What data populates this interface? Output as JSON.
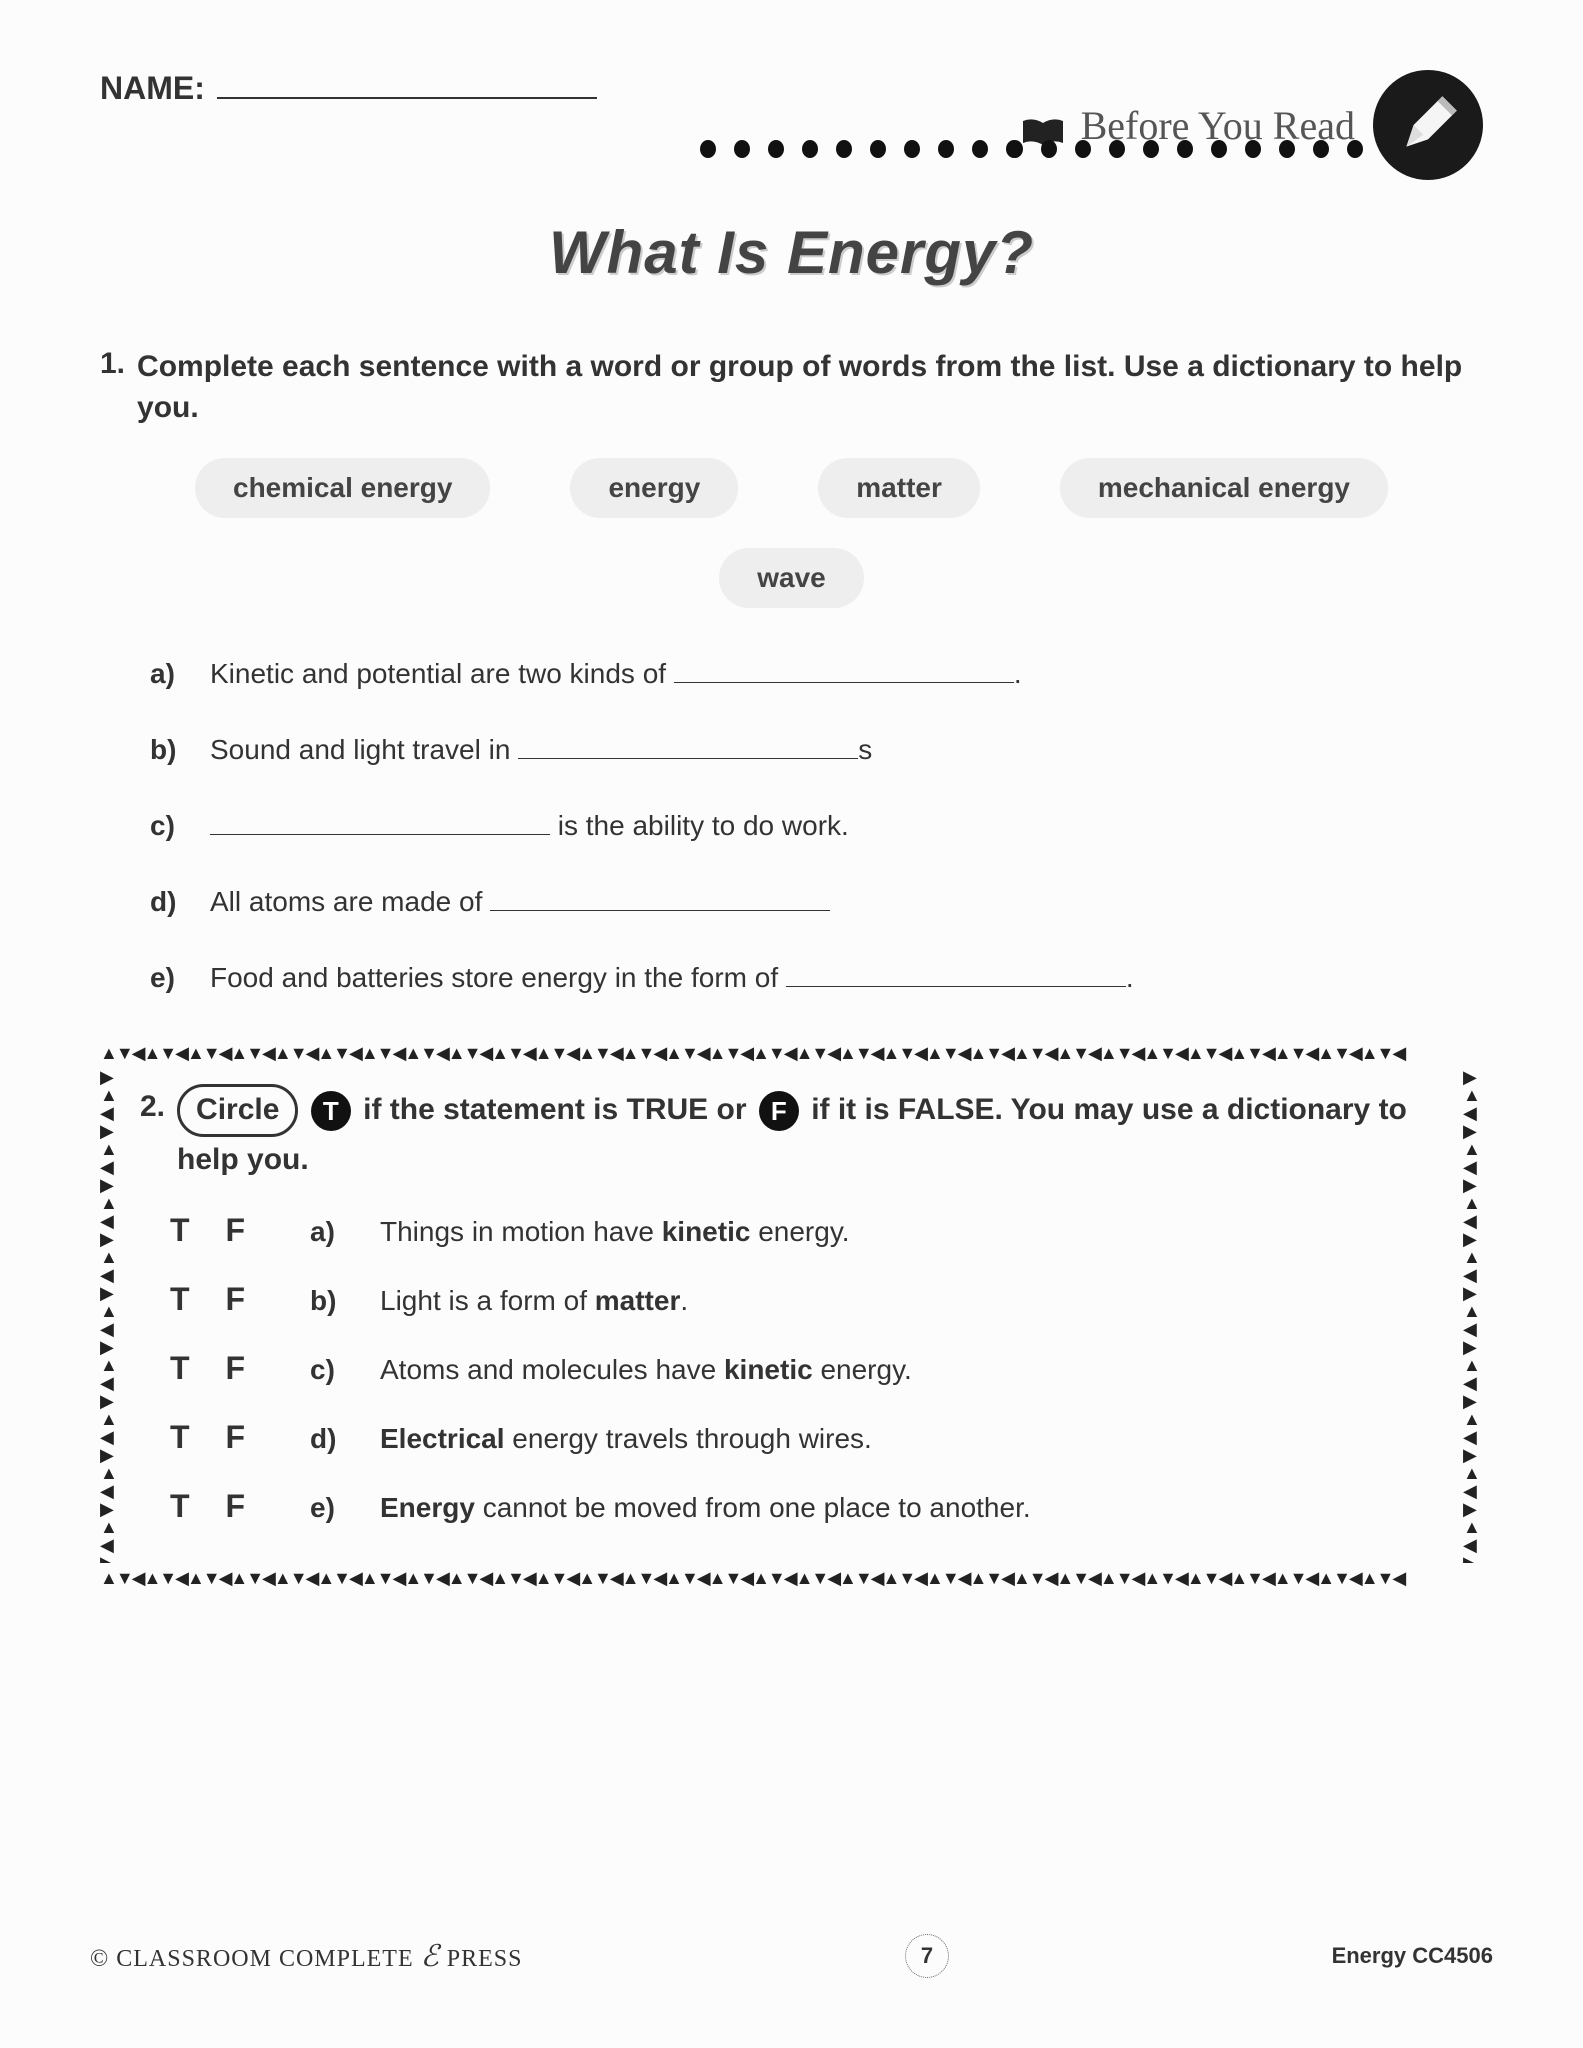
{
  "header": {
    "name_label": "NAME:",
    "section_title": "Before You Read"
  },
  "title": "What Is Energy?",
  "q1": {
    "number": "1.",
    "instruction": "Complete each sentence with a word or group of words from the list. Use a dictionary to help you.",
    "wordbank": [
      "chemical energy",
      "energy",
      "matter",
      "mechanical energy",
      "wave"
    ],
    "items": [
      {
        "label": "a)",
        "before": "Kinetic and potential are two kinds of ",
        "after": "."
      },
      {
        "label": "b)",
        "before": "Sound and light travel in ",
        "after": "s"
      },
      {
        "label": "c)",
        "before": "",
        "after": " is the ability to do work."
      },
      {
        "label": "d)",
        "before": "All atoms are made of ",
        "after": ""
      },
      {
        "label": "e)",
        "before": "Food and batteries store energy in the form of ",
        "after": "."
      }
    ]
  },
  "q2": {
    "number": "2.",
    "circle_word": "Circle",
    "instr_part1": " if the statement is TRUE or ",
    "instr_part2": " if it is FALSE. You may use a dictionary to help you.",
    "t_badge": "T",
    "f_badge": "F",
    "items": [
      {
        "label": "a)",
        "html": "Things in motion have <b>kinetic</b> energy."
      },
      {
        "label": "b)",
        "html": "Light is a form of <b>matter</b>."
      },
      {
        "label": "c)",
        "html": "Atoms and molecules have <b>kinetic</b> energy."
      },
      {
        "label": "d)",
        "html": "<b>Electrical</b> energy travels through wires."
      },
      {
        "label": "e)",
        "html": "<b>Energy</b> cannot be moved from one place to another."
      }
    ],
    "t_label": "T",
    "f_label": "F"
  },
  "footer": {
    "publisher_pre": "© CLASSROOM COMPLETE",
    "publisher_post": "PRESS",
    "page": "7",
    "series": "Energy CC4506"
  }
}
